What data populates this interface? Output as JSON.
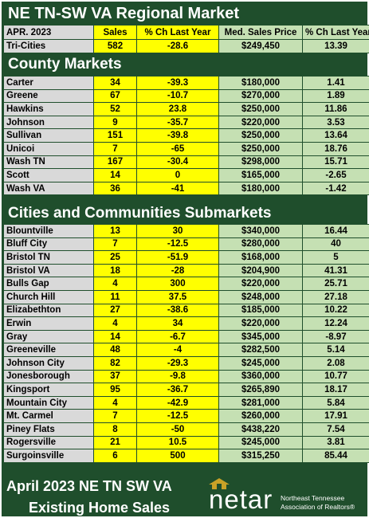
{
  "title": "NE TN-SW VA Regional Market",
  "header": {
    "period": "APR. 2023",
    "sales": "Sales",
    "pct_sales": "% Ch Last Year",
    "price": "Med. Sales Price",
    "pct_price": "% Ch Last Year"
  },
  "region": [
    {
      "name": "Tri-Cities",
      "sales": "582",
      "pct_sales": "-28.6",
      "price": "$249,450",
      "pct_price": "13.39"
    }
  ],
  "county_title": "County Markets",
  "counties": [
    {
      "name": "Carter",
      "sales": "34",
      "pct_sales": "-39.3",
      "price": "$180,000",
      "pct_price": "1.41"
    },
    {
      "name": "Greene",
      "sales": "67",
      "pct_sales": "-10.7",
      "price": "$270,000",
      "pct_price": "1.89"
    },
    {
      "name": "Hawkins",
      "sales": "52",
      "pct_sales": "23.8",
      "price": "$250,000",
      "pct_price": "11.86"
    },
    {
      "name": "Johnson",
      "sales": "9",
      "pct_sales": "-35.7",
      "price": "$220,000",
      "pct_price": "3.53"
    },
    {
      "name": "Sullivan",
      "sales": "151",
      "pct_sales": "-39.8",
      "price": "$250,000",
      "pct_price": "13.64"
    },
    {
      "name": "Unicoi",
      "sales": "7",
      "pct_sales": "-65",
      "price": "$250,000",
      "pct_price": "18.76"
    },
    {
      "name": "Wash TN",
      "sales": "167",
      "pct_sales": "-30.4",
      "price": "$298,000",
      "pct_price": "15.71"
    },
    {
      "name": "Scott",
      "sales": "14",
      "pct_sales": "0",
      "price": "$165,000",
      "pct_price": "-2.65"
    },
    {
      "name": "Wash VA",
      "sales": "36",
      "pct_sales": "-41",
      "price": "$180,000",
      "pct_price": "-1.42"
    }
  ],
  "cities_title": "Cities and Communities Submarkets",
  "cities": [
    {
      "name": "Blountville",
      "sales": "13",
      "pct_sales": "30",
      "price": "$340,000",
      "pct_price": "16.44"
    },
    {
      "name": "Bluff City",
      "sales": "7",
      "pct_sales": "-12.5",
      "price": "$280,000",
      "pct_price": "40"
    },
    {
      "name": "Bristol TN",
      "sales": "25",
      "pct_sales": "-51.9",
      "price": "$168,000",
      "pct_price": "5"
    },
    {
      "name": "Bristol VA",
      "sales": "18",
      "pct_sales": "-28",
      "price": "$204,900",
      "pct_price": "41.31"
    },
    {
      "name": "Bulls Gap",
      "sales": "4",
      "pct_sales": "300",
      "price": "$220,000",
      "pct_price": "25.71"
    },
    {
      "name": "Church Hill",
      "sales": "11",
      "pct_sales": "37.5",
      "price": "$248,000",
      "pct_price": "27.18"
    },
    {
      "name": "Elizabethton",
      "sales": "27",
      "pct_sales": "-38.6",
      "price": "$185,000",
      "pct_price": "10.22"
    },
    {
      "name": "Erwin",
      "sales": "4",
      "pct_sales": "34",
      "price": "$220,000",
      "pct_price": "12.24"
    },
    {
      "name": "Gray",
      "sales": "14",
      "pct_sales": "-6.7",
      "price": "$345,000",
      "pct_price": "-8.97"
    },
    {
      "name": "Greeneville",
      "sales": "48",
      "pct_sales": "-4",
      "price": "$282,500",
      "pct_price": "5.14"
    },
    {
      "name": "Johnson City",
      "sales": "82",
      "pct_sales": "-29.3",
      "price": "$245,000",
      "pct_price": "2.08"
    },
    {
      "name": "Jonesborough",
      "sales": "37",
      "pct_sales": "-9.8",
      "price": "$360,000",
      "pct_price": "10.77"
    },
    {
      "name": "Kingsport",
      "sales": "95",
      "pct_sales": "-36.7",
      "price": "$265,890",
      "pct_price": "18.17"
    },
    {
      "name": "Mountain City",
      "sales": "4",
      "pct_sales": "-42.9",
      "price": "$281,000",
      "pct_price": "5.84"
    },
    {
      "name": "Mt. Carmel",
      "sales": "7",
      "pct_sales": "-12.5",
      "price": "$260,000",
      "pct_price": "17.91"
    },
    {
      "name": "Piney Flats",
      "sales": "8",
      "pct_sales": "-50",
      "price": "$438,220",
      "pct_price": "7.54"
    },
    {
      "name": "Rogersville",
      "sales": "21",
      "pct_sales": "10.5",
      "price": "$245,000",
      "pct_price": "3.81"
    },
    {
      "name": "Surgoinsville",
      "sales": "6",
      "pct_sales": "500",
      "price": "$315,250",
      "pct_price": "85.44"
    }
  ],
  "footer": {
    "line1": "April 2023 NE TN SW VA",
    "line2": "Existing Home Sales"
  },
  "logo": {
    "word": "netar",
    "sub1": "Northeast Tennessee",
    "sub2": "Association of Realtors®"
  },
  "colors": {
    "background": "#1f4e2c",
    "name_col": "#d9d9d9",
    "sales_cols": "#ffff00",
    "price_cols": "#c5e0b3"
  }
}
